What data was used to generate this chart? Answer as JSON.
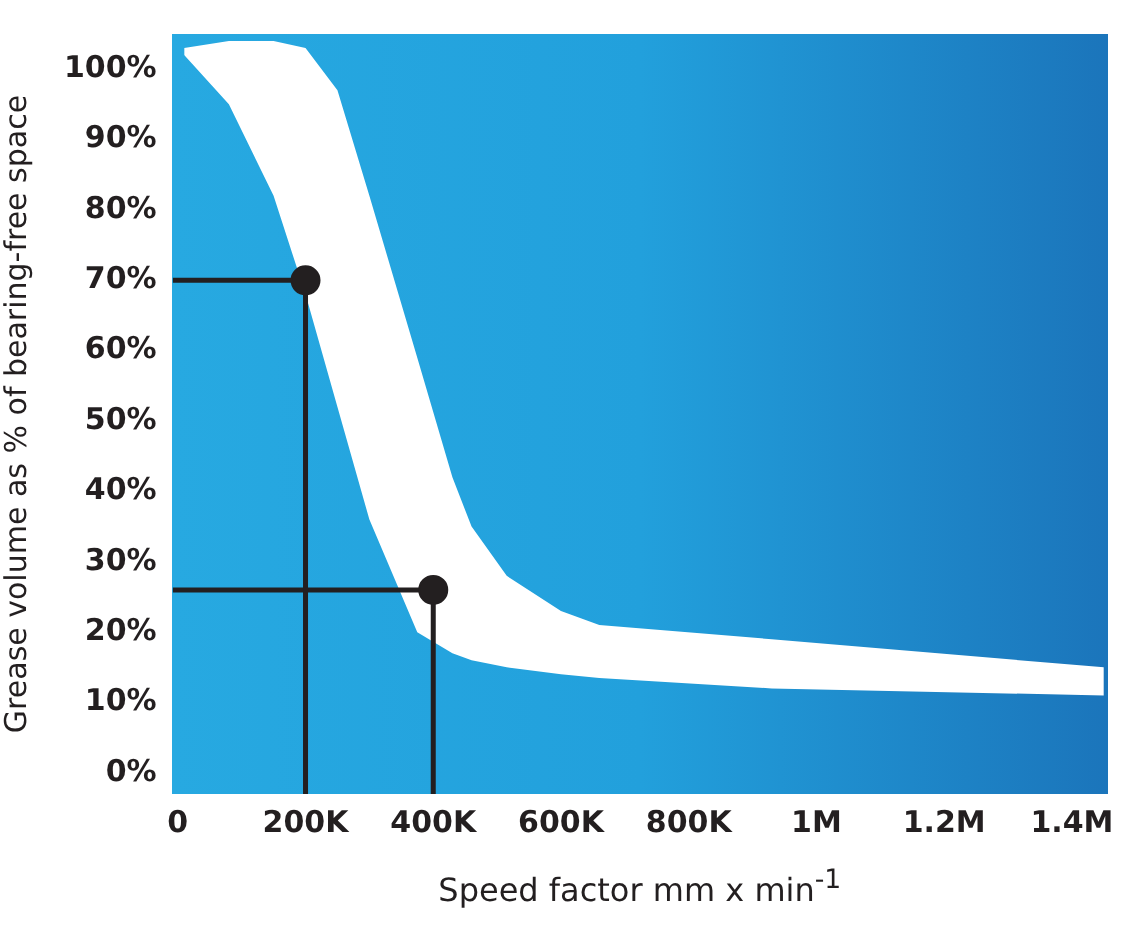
{
  "chart_data": {
    "type": "line",
    "xlabel": "Speed factor mm x min$^{-1}$",
    "ylabel": "Grease volume as % of bearing-free space",
    "xlim": [
      -8000,
      1455000
    ],
    "ylim": [
      -3,
      105
    ],
    "xticks": [
      0,
      {
        "value": 200000,
        "label": "200K"
      },
      {
        "value": 400000,
        "label": "400K"
      },
      {
        "value": 600000,
        "label": "600K"
      },
      {
        "value": 800000,
        "label": "800K"
      },
      {
        "value": 1000000,
        "label": "1M"
      },
      {
        "value": 1200000,
        "label": "1.2M"
      },
      {
        "value": 1400000,
        "label": "1.4M"
      }
    ],
    "yticks": [
      {
        "value": 0,
        "label": "0%"
      },
      {
        "value": 10,
        "label": "10%"
      },
      {
        "value": 20,
        "label": "20%"
      },
      {
        "value": 30,
        "label": "30%"
      },
      {
        "value": 40,
        "label": "40%"
      },
      {
        "value": 50,
        "label": "50%"
      },
      {
        "value": 60,
        "label": "60%"
      },
      {
        "value": 70,
        "label": "70%"
      },
      {
        "value": 80,
        "label": "80%"
      },
      {
        "value": 90,
        "label": "90%"
      },
      {
        "value": 100,
        "label": "100%"
      }
    ],
    "grid": false,
    "legend": false,
    "marker": "none",
    "series": [
      {
        "type": "line",
        "color": "#ffffff",
        "x": [
          10000,
          80000,
          150000,
          200000,
          250000,
          300000,
          375000,
          430000,
          460000,
          515000,
          600000,
          660000,
          930000,
          1450000
        ],
        "values": [
          null,
          null,
          null,
          null,
          null,
          null,
          null,
          null,
          null,
          null,
          null,
          null,
          null,
          null
        ],
        "upper": [
          103,
          104,
          104,
          103,
          97,
          82,
          59,
          42,
          35,
          28,
          23,
          21,
          19,
          15
        ],
        "lower": [
          102,
          95,
          82,
          68,
          52,
          36,
          20,
          17,
          16,
          15,
          14,
          13.5,
          12,
          11
        ]
      },
      {
        "type": "line",
        "color": "#231f20",
        "x": [
          -8000,
          200000,
          200000
        ],
        "values": [
          70,
          70,
          -3
        ]
      },
      {
        "type": "line",
        "color": "#231f20",
        "x": [
          -8000,
          400000,
          400000
        ],
        "values": [
          26,
          26,
          -3
        ]
      },
      {
        "type": "scatter",
        "color": "#231f20",
        "marker": "circle",
        "x": [
          200000,
          400000
        ],
        "values": [
          70,
          26
        ]
      }
    ]
  }
}
